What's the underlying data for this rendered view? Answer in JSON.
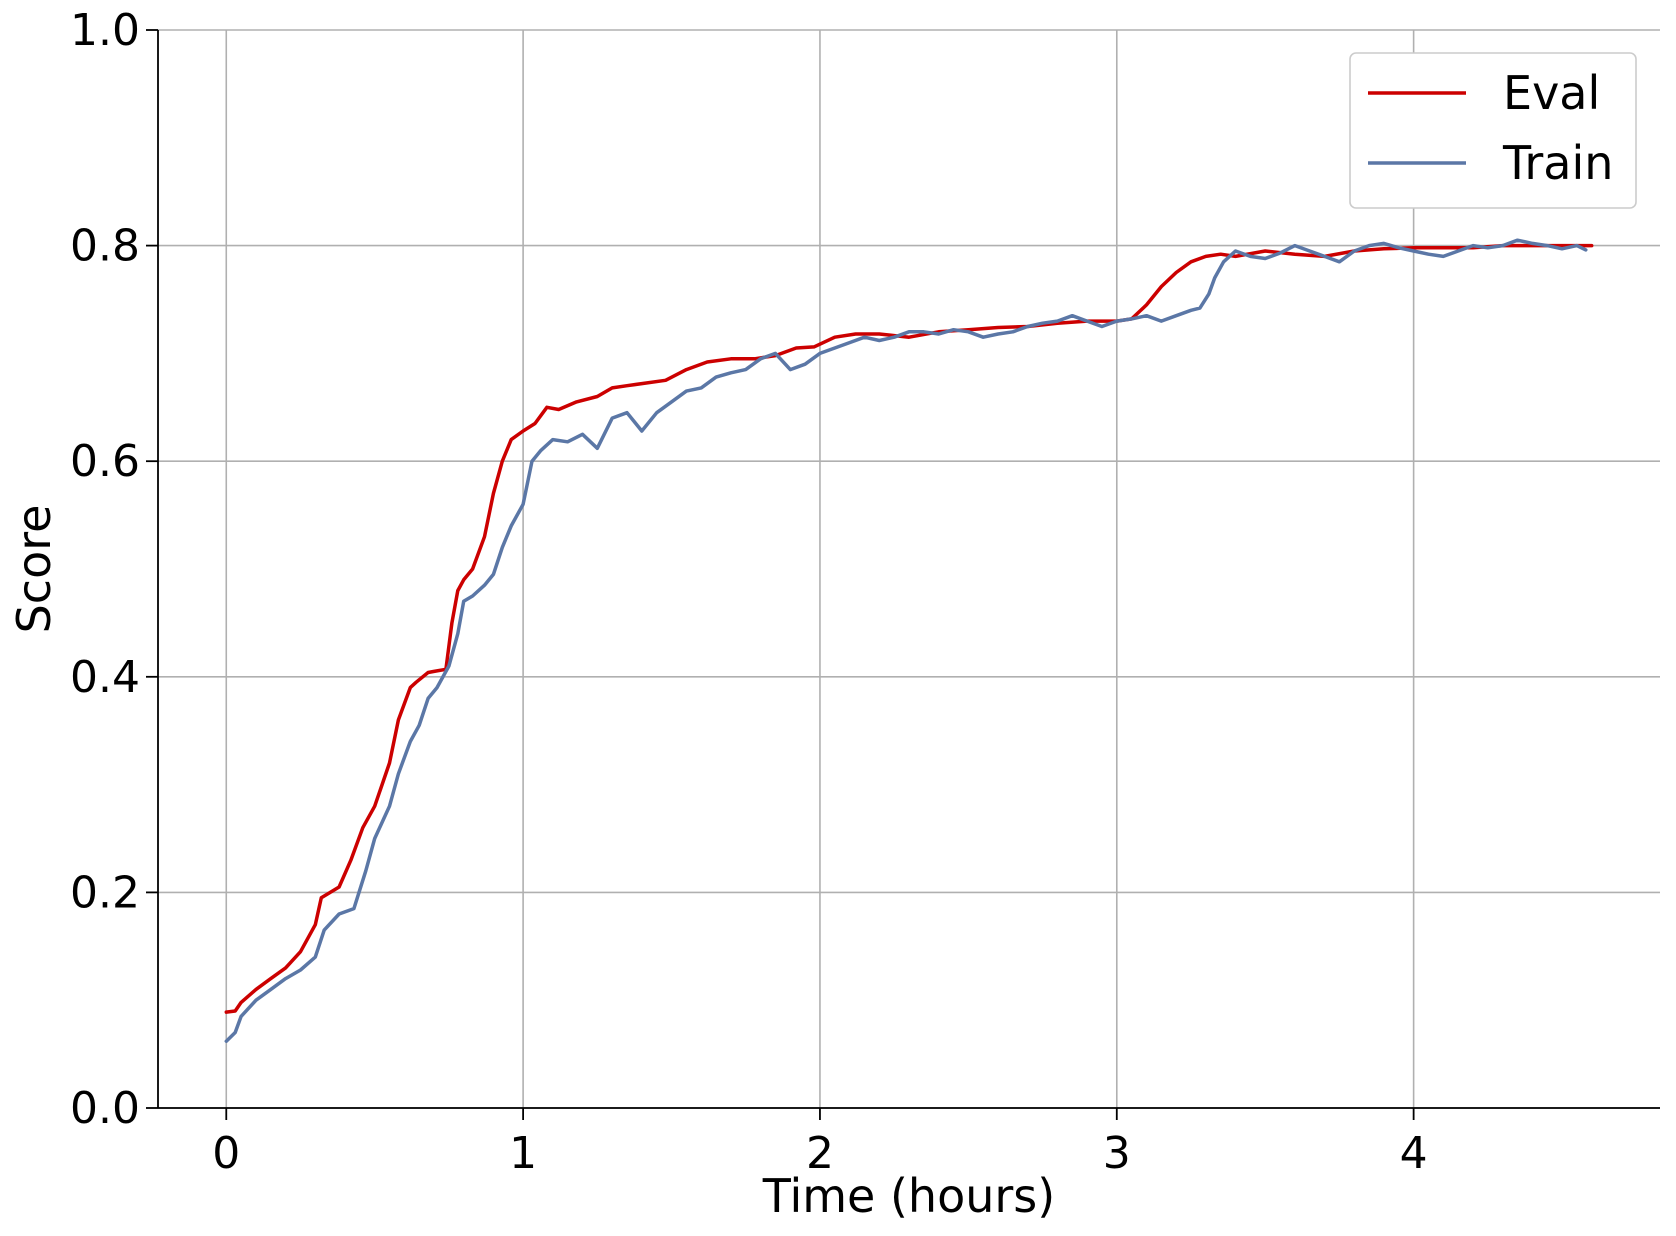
{
  "chart_data": {
    "type": "line",
    "xlabel": "Time (hours)",
    "ylabel": "Score",
    "xlim": [
      -0.23,
      4.83
    ],
    "ylim": [
      0,
      1.0
    ],
    "x_ticks": [
      0,
      1,
      2,
      3,
      4
    ],
    "x_tick_labels": [
      "0",
      "1",
      "2",
      "3",
      "4"
    ],
    "y_ticks": [
      0.0,
      0.2,
      0.4,
      0.6,
      0.8,
      1.0
    ],
    "y_tick_labels": [
      "0.0",
      "0.2",
      "0.4",
      "0.6",
      "0.8",
      "1.0"
    ],
    "grid": true,
    "legend_position": "top-right",
    "series": [
      {
        "name": "Eval",
        "color": "#cc0000",
        "x": [
          0,
          0.03,
          0.05,
          0.1,
          0.15,
          0.2,
          0.25,
          0.3,
          0.32,
          0.38,
          0.42,
          0.46,
          0.5,
          0.55,
          0.58,
          0.62,
          0.64,
          0.68,
          0.7,
          0.74,
          0.76,
          0.78,
          0.8,
          0.83,
          0.87,
          0.9,
          0.93,
          0.96,
          1.0,
          1.04,
          1.08,
          1.12,
          1.18,
          1.25,
          1.3,
          1.35,
          1.4,
          1.48,
          1.55,
          1.62,
          1.7,
          1.78,
          1.85,
          1.92,
          1.98,
          2.05,
          2.12,
          2.2,
          2.3,
          2.4,
          2.5,
          2.6,
          2.7,
          2.8,
          2.9,
          3.0,
          3.05,
          3.1,
          3.15,
          3.2,
          3.25,
          3.3,
          3.35,
          3.4,
          3.5,
          3.6,
          3.7,
          3.8,
          3.9,
          4.0,
          4.1,
          4.2,
          4.3,
          4.4,
          4.5,
          4.6
        ],
        "y": [
          0.089,
          0.09,
          0.098,
          0.11,
          0.12,
          0.13,
          0.145,
          0.17,
          0.195,
          0.205,
          0.23,
          0.26,
          0.28,
          0.32,
          0.36,
          0.39,
          0.395,
          0.404,
          0.405,
          0.407,
          0.45,
          0.48,
          0.49,
          0.5,
          0.53,
          0.57,
          0.6,
          0.62,
          0.628,
          0.635,
          0.65,
          0.648,
          0.655,
          0.66,
          0.668,
          0.67,
          0.672,
          0.675,
          0.685,
          0.692,
          0.695,
          0.695,
          0.698,
          0.705,
          0.706,
          0.715,
          0.718,
          0.718,
          0.715,
          0.72,
          0.722,
          0.724,
          0.725,
          0.728,
          0.73,
          0.73,
          0.732,
          0.745,
          0.762,
          0.775,
          0.785,
          0.79,
          0.792,
          0.79,
          0.795,
          0.792,
          0.79,
          0.795,
          0.797,
          0.798,
          0.798,
          0.798,
          0.8,
          0.8,
          0.8,
          0.8
        ]
      },
      {
        "name": "Train",
        "color": "#5b77a6",
        "x": [
          0,
          0.03,
          0.05,
          0.1,
          0.15,
          0.2,
          0.25,
          0.3,
          0.33,
          0.38,
          0.43,
          0.47,
          0.5,
          0.55,
          0.58,
          0.62,
          0.65,
          0.68,
          0.71,
          0.75,
          0.78,
          0.8,
          0.83,
          0.87,
          0.9,
          0.93,
          0.96,
          1.0,
          1.03,
          1.06,
          1.1,
          1.15,
          1.2,
          1.25,
          1.3,
          1.35,
          1.4,
          1.45,
          1.5,
          1.55,
          1.6,
          1.65,
          1.7,
          1.75,
          1.8,
          1.85,
          1.9,
          1.95,
          2.0,
          2.05,
          2.1,
          2.15,
          2.2,
          2.25,
          2.3,
          2.35,
          2.4,
          2.45,
          2.5,
          2.55,
          2.6,
          2.65,
          2.7,
          2.75,
          2.8,
          2.85,
          2.9,
          2.95,
          3.0,
          3.05,
          3.1,
          3.15,
          3.2,
          3.25,
          3.28,
          3.31,
          3.33,
          3.36,
          3.4,
          3.45,
          3.5,
          3.55,
          3.6,
          3.65,
          3.7,
          3.75,
          3.8,
          3.85,
          3.9,
          3.95,
          4.0,
          4.05,
          4.1,
          4.15,
          4.2,
          4.25,
          4.3,
          4.35,
          4.4,
          4.45,
          4.5,
          4.55,
          4.58
        ],
        "y": [
          0.062,
          0.07,
          0.085,
          0.1,
          0.11,
          0.12,
          0.128,
          0.14,
          0.165,
          0.18,
          0.185,
          0.22,
          0.25,
          0.28,
          0.31,
          0.34,
          0.355,
          0.38,
          0.39,
          0.41,
          0.44,
          0.47,
          0.475,
          0.485,
          0.495,
          0.52,
          0.54,
          0.56,
          0.6,
          0.61,
          0.62,
          0.618,
          0.625,
          0.612,
          0.64,
          0.645,
          0.628,
          0.645,
          0.655,
          0.665,
          0.668,
          0.678,
          0.682,
          0.685,
          0.695,
          0.7,
          0.685,
          0.69,
          0.7,
          0.705,
          0.71,
          0.715,
          0.712,
          0.715,
          0.72,
          0.72,
          0.718,
          0.722,
          0.72,
          0.715,
          0.718,
          0.72,
          0.725,
          0.728,
          0.73,
          0.735,
          0.73,
          0.725,
          0.73,
          0.732,
          0.735,
          0.73,
          0.735,
          0.74,
          0.742,
          0.755,
          0.77,
          0.785,
          0.795,
          0.79,
          0.788,
          0.793,
          0.8,
          0.795,
          0.79,
          0.785,
          0.795,
          0.8,
          0.802,
          0.798,
          0.795,
          0.792,
          0.79,
          0.795,
          0.8,
          0.798,
          0.8,
          0.805,
          0.802,
          0.8,
          0.797,
          0.8,
          0.796
        ]
      }
    ]
  }
}
